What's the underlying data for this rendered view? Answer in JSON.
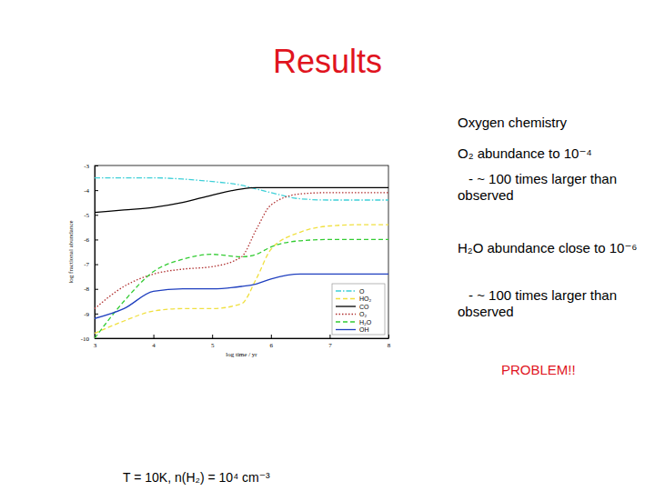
{
  "title": "Results",
  "notes": [
    "Oxygen chemistry",
    "O₂ abundance to 10⁻⁴",
    "- ~ 100 times larger than observed",
    "H₂O abundance close to 10⁻⁶",
    "- ~ 100 times larger than observed",
    "PROBLEM!!"
  ],
  "conditions": "T = 10K, n(H₂) = 10⁴ cm⁻³",
  "chart_data": {
    "type": "line",
    "x_label": "log time / yr",
    "y_label": "log fractional abundance",
    "x": [
      3,
      3.5,
      4,
      4.5,
      5,
      5.5,
      5.75,
      6,
      6.5,
      7,
      7.5,
      8
    ],
    "xlim": [
      3,
      8
    ],
    "xticks": [
      3,
      4,
      5,
      6,
      7,
      8
    ],
    "ylim": [
      -10,
      -3
    ],
    "yticks": [
      -3,
      -4,
      -5,
      -6,
      -7,
      -8,
      -9,
      -10
    ],
    "legend": "bottom-right",
    "series": [
      {
        "name": "O",
        "color": "#3fd0d8",
        "line_style": "dashdot",
        "values": [
          -3.5,
          -3.5,
          -3.5,
          -3.55,
          -3.65,
          -3.8,
          -3.95,
          -4.1,
          -4.35,
          -4.4,
          -4.4,
          -4.4
        ]
      },
      {
        "name": "HO₂",
        "color": "#f0e040",
        "line_style": "dashed",
        "values": [
          -9.8,
          -9.3,
          -8.9,
          -8.8,
          -8.8,
          -8.6,
          -7.6,
          -6.4,
          -5.7,
          -5.45,
          -5.4,
          -5.4
        ]
      },
      {
        "name": "CO",
        "color": "#000000",
        "line_style": "solid",
        "values": [
          -4.9,
          -4.8,
          -4.7,
          -4.5,
          -4.2,
          -3.95,
          -3.9,
          -3.9,
          -3.9,
          -3.9,
          -3.9,
          -3.9
        ]
      },
      {
        "name": "O₂",
        "color": "#b03030",
        "line_style": "dotted",
        "values": [
          -8.8,
          -7.9,
          -7.4,
          -7.2,
          -7.1,
          -6.7,
          -5.6,
          -4.6,
          -4.15,
          -4.1,
          -4.1,
          -4.1
        ]
      },
      {
        "name": "H₂O",
        "color": "#33cc33",
        "line_style": "dashed",
        "values": [
          -10,
          -8.5,
          -7.3,
          -6.8,
          -6.6,
          -6.7,
          -6.6,
          -6.3,
          -6.05,
          -6.0,
          -6.0,
          -6.0
        ]
      },
      {
        "name": "OH",
        "color": "#1f3fbf",
        "line_style": "solid",
        "values": [
          -9.2,
          -8.8,
          -8.1,
          -8.0,
          -8.0,
          -7.9,
          -7.8,
          -7.6,
          -7.4,
          -7.4,
          -7.4,
          -7.4
        ]
      }
    ]
  }
}
